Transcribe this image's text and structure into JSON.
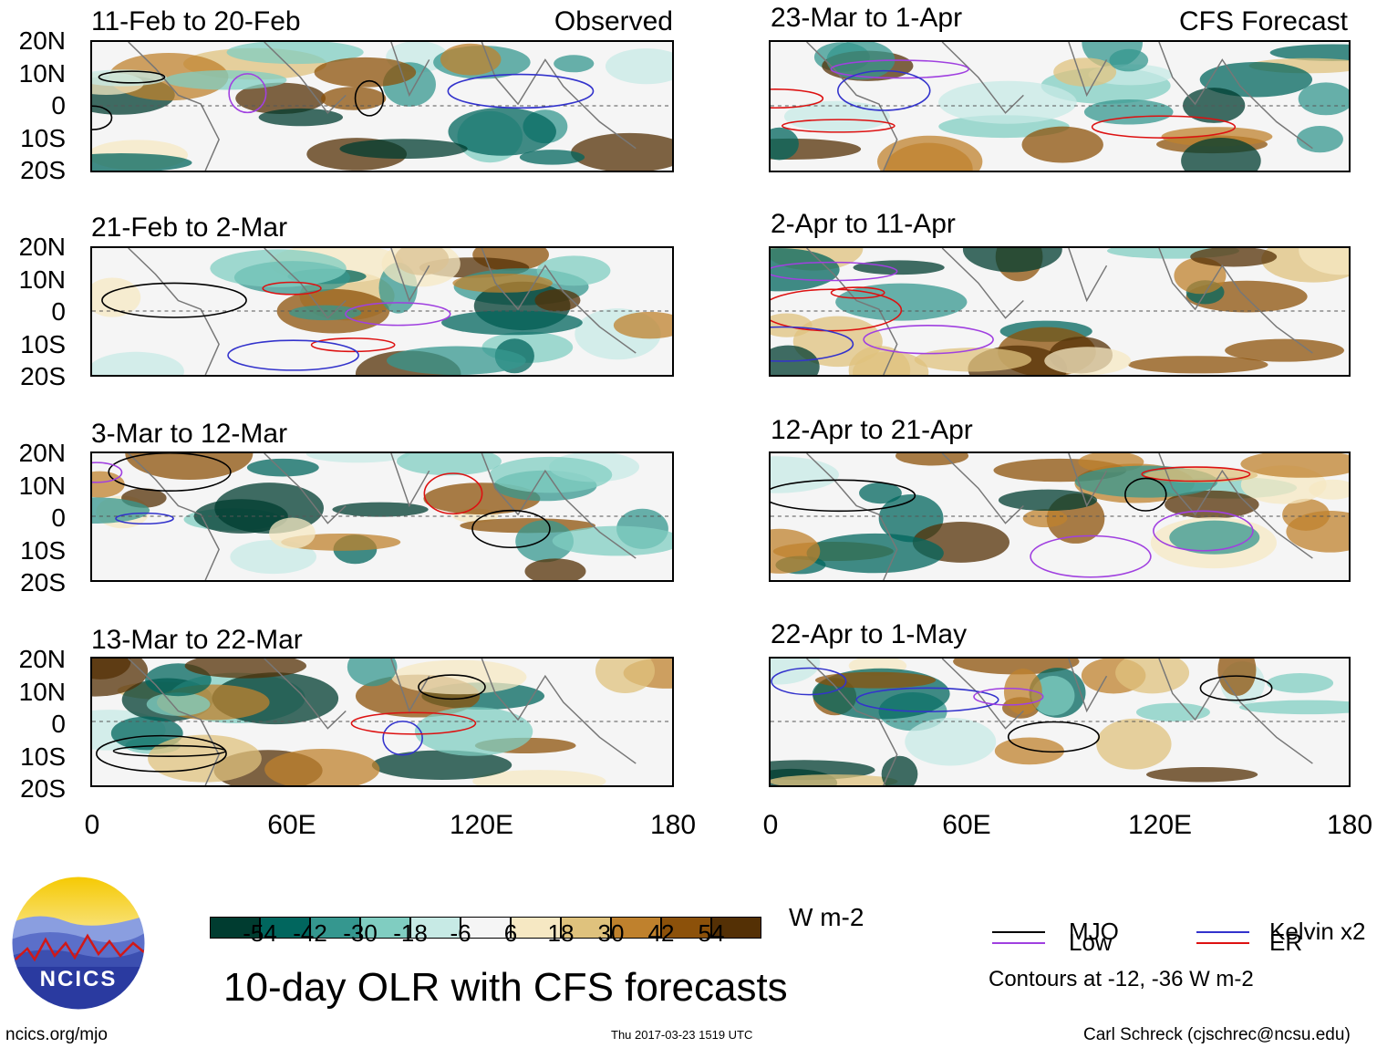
{
  "figure": {
    "title": "10-day OLR with CFS forecasts",
    "observed_label": "Observed",
    "forecast_label": "CFS Forecast",
    "units": "W m-2",
    "website": "ncics.org/mjo",
    "timestamp": "Thu 2017-03-23 1519 UTC",
    "credit": "Carl Schreck (cjschrec@ncsu.edu)",
    "logo_text": "NCICS"
  },
  "panels": {
    "observed": [
      {
        "period": "11-Feb to 20-Feb"
      },
      {
        "period": "21-Feb to 2-Mar"
      },
      {
        "period": "3-Mar to 12-Mar"
      },
      {
        "period": "13-Mar to 22-Mar"
      }
    ],
    "forecast": [
      {
        "period": "23-Mar to 1-Apr"
      },
      {
        "period": "2-Apr to 11-Apr"
      },
      {
        "period": "12-Apr to 21-Apr"
      },
      {
        "period": "22-Apr to 1-May"
      }
    ]
  },
  "axes": {
    "lat_ticks": [
      "20N",
      "10N",
      "0",
      "10S",
      "20S"
    ],
    "lon_ticks": [
      "0",
      "60E",
      "120E",
      "180"
    ]
  },
  "colorbar": {
    "labels": [
      "-54",
      "-42",
      "-30",
      "-18",
      "-6",
      "6",
      "18",
      "30",
      "42",
      "54"
    ],
    "colors": [
      "#003c30",
      "#01665e",
      "#35978f",
      "#80cdc1",
      "#c7eae5",
      "#f5f5f5",
      "#f6e8c3",
      "#dfc27d",
      "#bf812d",
      "#8c510a",
      "#543005"
    ]
  },
  "legend": {
    "items": [
      {
        "label": "MJO",
        "color": "#000000"
      },
      {
        "label": "Kelvin x2",
        "color": "#3333cc"
      },
      {
        "label": "Low",
        "color": "#a040e0"
      },
      {
        "label": "ER",
        "color": "#dd1111"
      }
    ],
    "note": "Contours at -12, -36 W m-2"
  }
}
